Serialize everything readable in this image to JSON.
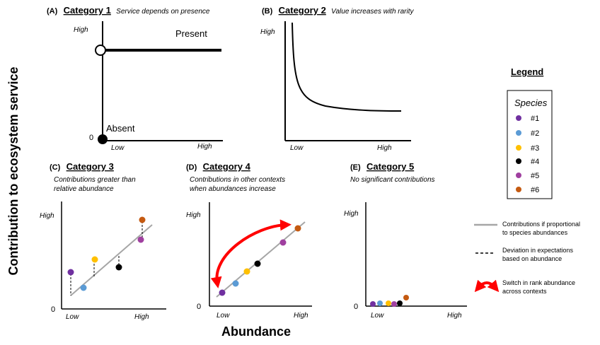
{
  "y_axis_label": "Contribution to ecosystem service",
  "x_axis_label": "Abundance",
  "panels": {
    "A": {
      "tag": "(A)",
      "category": "Category 1",
      "description": "Service depends on presence",
      "high": "High",
      "low": "Low",
      "zero": "0",
      "present_label": "Present",
      "absent_label": "Absent"
    },
    "B": {
      "tag": "(B)",
      "category": "Category 2",
      "description": "Value increases with rarity",
      "high": "High",
      "low": "Low"
    },
    "C": {
      "tag": "(C)",
      "category": "Category 3",
      "description_line1": "Contributions greater than",
      "description_line2": "relative abundance",
      "high": "High",
      "low": "Low",
      "zero": "0"
    },
    "D": {
      "tag": "(D)",
      "category": "Category 4",
      "description_line1": "Contributions in other contexts",
      "description_line2": "when abundances increase",
      "high": "High",
      "low": "Low",
      "zero": "0"
    },
    "E": {
      "tag": "(E)",
      "category": "Category 5",
      "description": "No significant contributions",
      "high": "High",
      "low": "Low",
      "zero": "0"
    }
  },
  "legend": {
    "title": "Legend",
    "species_heading": "Species",
    "species": [
      {
        "label": "#1",
        "color": "#7030a0"
      },
      {
        "label": "#2",
        "color": "#5b9bd5"
      },
      {
        "label": "#3",
        "color": "#ffc000"
      },
      {
        "label": "#4",
        "color": "#000000"
      },
      {
        "label": "#5",
        "color": "#a040a0"
      },
      {
        "label": "#6",
        "color": "#c55a11"
      }
    ],
    "key": {
      "proportional_line1": "Contributions if proportional",
      "proportional_line2": "to species abundances",
      "deviation_line1": "Deviation in expectations",
      "deviation_line2": "based on abundance",
      "switch_line1": "Switch in rank abundance",
      "switch_line2": "across contexts"
    }
  },
  "colors": {
    "proportional_line": "#a6a6a6",
    "switch_arrow": "#ff0000"
  }
}
